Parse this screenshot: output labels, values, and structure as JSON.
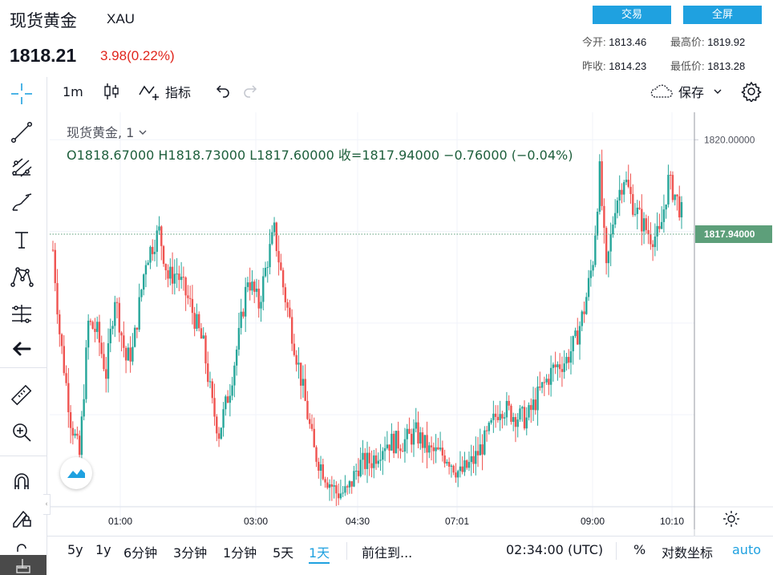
{
  "header": {
    "title": "现货黄金",
    "symbol": "XAU",
    "price": "1818.21",
    "change": "3.98(0.22%)",
    "trade_button": "交易",
    "fullscreen_button": "全屏",
    "stats": {
      "open_label": "今开:",
      "open": "1813.46",
      "high_label": "最高价:",
      "high": "1819.92",
      "prevclose_label": "昨收:",
      "prevclose": "1814.23",
      "low_label": "最低价:",
      "low": "1813.28"
    }
  },
  "toolbar": {
    "interval": "1m",
    "indicators": "指标",
    "save": "保存"
  },
  "legend": {
    "name": "现货黄金, 1",
    "ohlc": "O1818.67000  H1818.73000  L1817.60000  收=1817.94000  −0.76000 (−0.04%)"
  },
  "bottom": {
    "ranges": [
      "5y",
      "1y",
      "6分钟",
      "3分钟",
      "1分钟",
      "5天",
      "1天"
    ],
    "active_range": "1天",
    "goto": "前往到...",
    "time": "02:34:00 (UTC)",
    "percent": "%",
    "log": "对数坐标",
    "auto": "auto"
  },
  "colors": {
    "up": "#26a69a",
    "down": "#ef5350",
    "accent": "#1fa1e0",
    "last_price_bg": "#5d9f7a"
  },
  "chart_data": {
    "type": "candlestick",
    "x_ticks": [
      "01:00",
      "03:00",
      "04:30",
      "07:01",
      "09:00",
      "10:10"
    ],
    "y_ticks": [
      "1820.00000"
    ],
    "last_price": "1817.94000",
    "last_price_value": 1817.94,
    "ylim": [
      1811.5,
      1820.6
    ],
    "close_path": [
      [
        0,
        1817.6
      ],
      [
        3,
        1815.8
      ],
      [
        8,
        1813.9
      ],
      [
        12,
        1813.1
      ],
      [
        16,
        1816.0
      ],
      [
        20,
        1815.8
      ],
      [
        24,
        1814.9
      ],
      [
        28,
        1816.6
      ],
      [
        33,
        1815.2
      ],
      [
        36,
        1815.4
      ],
      [
        42,
        1817.4
      ],
      [
        48,
        1818.0
      ],
      [
        52,
        1817.0
      ],
      [
        56,
        1817.1
      ],
      [
        62,
        1816.4
      ],
      [
        68,
        1815.5
      ],
      [
        72,
        1814.2
      ],
      [
        75,
        1813.6
      ],
      [
        80,
        1814.6
      ],
      [
        84,
        1815.7
      ],
      [
        88,
        1817.0
      ],
      [
        93,
        1816.4
      ],
      [
        97,
        1817.4
      ],
      [
        100,
        1818.0
      ],
      [
        104,
        1816.8
      ],
      [
        108,
        1815.8
      ],
      [
        112,
        1814.8
      ],
      [
        118,
        1813.2
      ],
      [
        124,
        1812.6
      ],
      [
        128,
        1812.3
      ],
      [
        133,
        1812.3
      ],
      [
        138,
        1812.9
      ],
      [
        144,
        1813.0
      ],
      [
        150,
        1813.4
      ],
      [
        158,
        1813.4
      ],
      [
        164,
        1813.6
      ],
      [
        170,
        1813.2
      ],
      [
        178,
        1813.1
      ],
      [
        184,
        1812.7
      ],
      [
        190,
        1813.0
      ],
      [
        196,
        1813.5
      ],
      [
        202,
        1814.2
      ],
      [
        208,
        1814.0
      ],
      [
        214,
        1813.9
      ],
      [
        220,
        1814.5
      ],
      [
        226,
        1815.0
      ],
      [
        232,
        1815.2
      ],
      [
        236,
        1815.6
      ],
      [
        240,
        1816.3
      ],
      [
        244,
        1817.4
      ],
      [
        247,
        1819.3
      ],
      [
        250,
        1817.1
      ],
      [
        254,
        1818.6
      ],
      [
        258,
        1819.2
      ],
      [
        262,
        1818.6
      ],
      [
        266,
        1818.2
      ],
      [
        270,
        1817.9
      ],
      [
        274,
        1817.9
      ],
      [
        278,
        1819.1
      ],
      [
        281,
        1818.8
      ],
      [
        284,
        1818.4
      ]
    ]
  }
}
